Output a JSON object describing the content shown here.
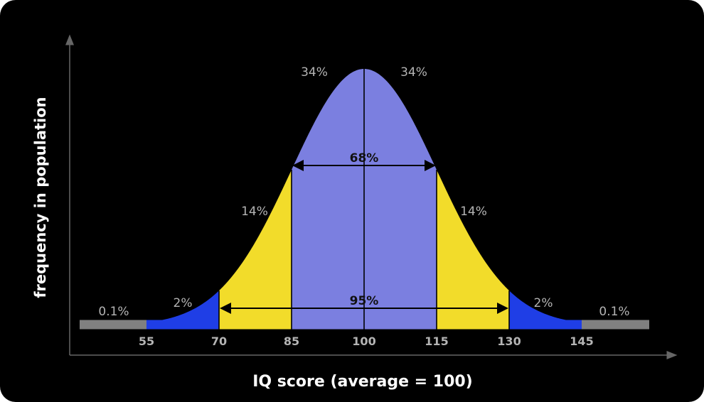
{
  "chart_data": {
    "type": "area",
    "title": "",
    "xlabel": "IQ score (average = 100)",
    "ylabel": "frequency in population",
    "mean": 100,
    "sd": 15,
    "x_ticks": [
      55,
      70,
      85,
      100,
      115,
      130,
      145
    ],
    "xlim": [
      40,
      160
    ],
    "regions": [
      {
        "from": 40,
        "to": 55,
        "label": "0.1%",
        "color": "#808080"
      },
      {
        "from": 55,
        "to": 70,
        "label": "2%",
        "color": "#1f3ee6"
      },
      {
        "from": 70,
        "to": 85,
        "label": "14%",
        "color": "#f2dc2a"
      },
      {
        "from": 85,
        "to": 100,
        "label": "34%",
        "color": "#7b7fe0"
      },
      {
        "from": 100,
        "to": 115,
        "label": "34%",
        "color": "#7b7fe0"
      },
      {
        "from": 115,
        "to": 130,
        "label": "14%",
        "color": "#f2dc2a"
      },
      {
        "from": 130,
        "to": 145,
        "label": "2%",
        "color": "#1f3ee6"
      },
      {
        "from": 145,
        "to": 160,
        "label": "0.1%",
        "color": "#808080"
      }
    ],
    "spans": [
      {
        "from": 85,
        "to": 115,
        "label": "68%"
      },
      {
        "from": 70,
        "to": 130,
        "label": "95%"
      }
    ]
  }
}
